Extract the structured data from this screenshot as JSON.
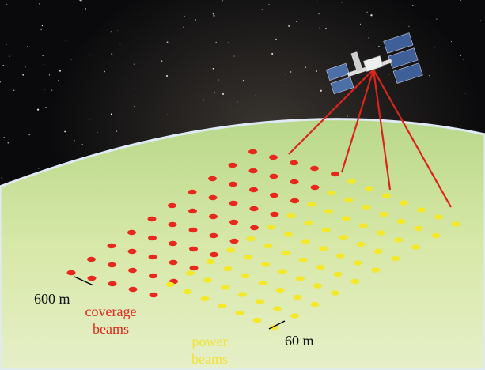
{
  "labels": {
    "coverage_spacing": "600 m",
    "coverage_beams": [
      "coverage",
      "beams"
    ],
    "power_beams": [
      "power",
      "beams"
    ],
    "power_spacing": "60 m"
  }
}
